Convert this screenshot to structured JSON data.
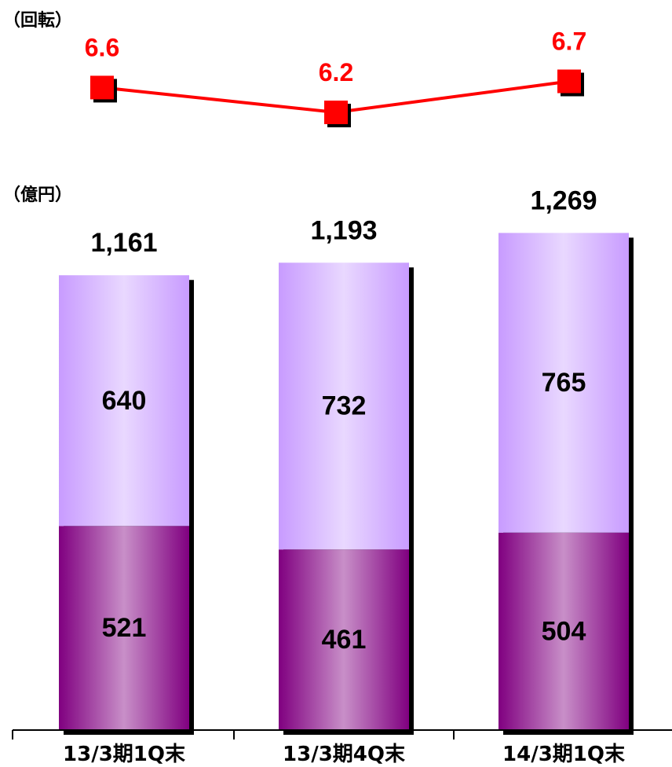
{
  "units": {
    "turnover": "（回転）",
    "amount": "（億円）"
  },
  "colors": {
    "line": "#ff0000",
    "upper_segment": "#c89bff",
    "upper_segment_light": "#e9d8ff",
    "lower_segment": "#800080",
    "lower_segment_light": "#c88fc8",
    "text": "#000000"
  },
  "chart_data": [
    {
      "type": "line",
      "ylabel": "（回転）",
      "categories": [
        "13/3期1Q末",
        "13/3期4Q末",
        "14/3期1Q末"
      ],
      "series": [
        {
          "values": [
            6.6,
            6.2,
            6.7
          ]
        }
      ],
      "data_labels": [
        "6.6",
        "6.2",
        "6.7"
      ],
      "marker": "square",
      "grid": false
    },
    {
      "type": "bar",
      "stacked": true,
      "ylabel": "（億円）",
      "categories": [
        "13/3期1Q末",
        "13/3期4Q末",
        "14/3期1Q末"
      ],
      "series": [
        {
          "values": [
            521,
            461,
            504
          ]
        },
        {
          "values": [
            640,
            732,
            765
          ]
        }
      ],
      "lower_labels": [
        "521",
        "461",
        "504"
      ],
      "upper_labels": [
        "640",
        "732",
        "765"
      ],
      "totals": [
        1161,
        1193,
        1269
      ],
      "total_labels": [
        "1,161",
        "1,193",
        "1,269"
      ],
      "grid": false
    }
  ]
}
